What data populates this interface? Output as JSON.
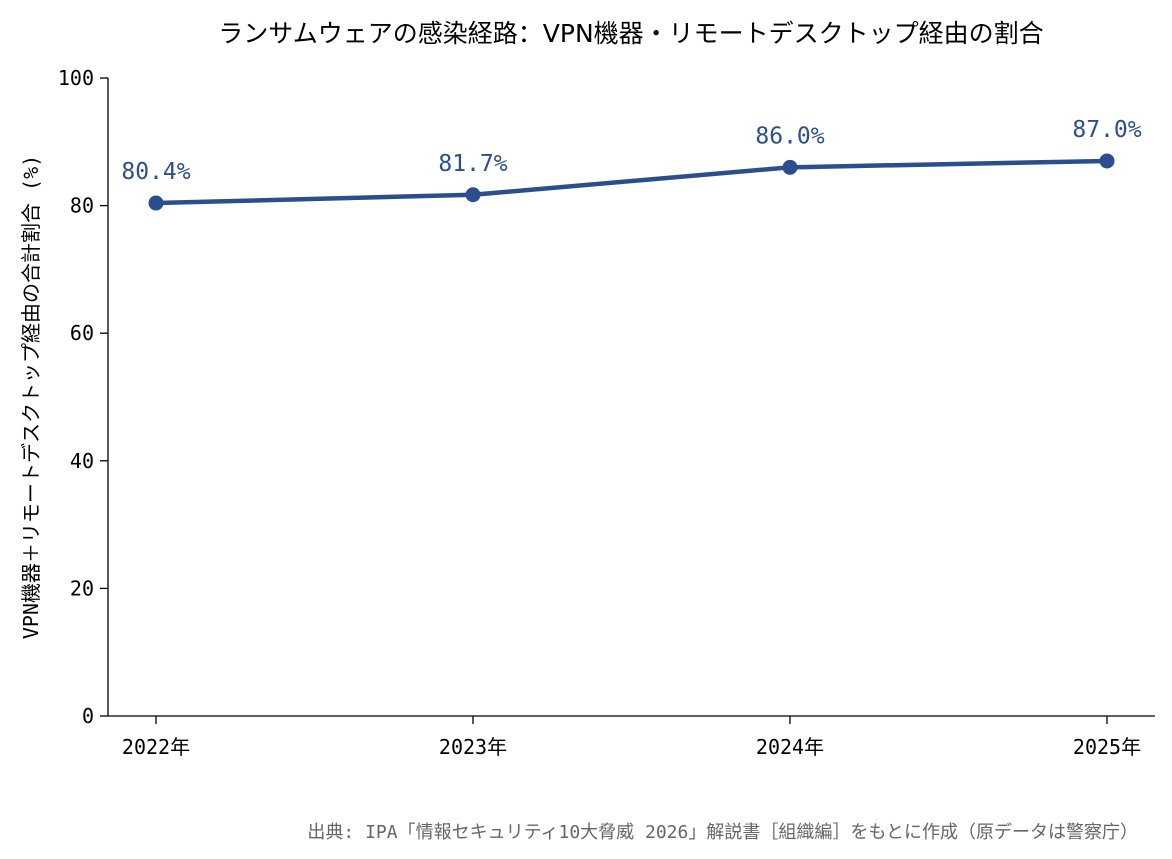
{
  "chart_data": {
    "type": "line",
    "title": "ランサムウェアの感染経路：VPN機器・リモートデスクトップ経由の割合",
    "ylabel": "VPN機器＋リモートデスクトップ経由の合計割合 (%)",
    "xlabel": "",
    "categories": [
      "2022年",
      "2023年",
      "2024年",
      "2025年"
    ],
    "series": [
      {
        "values": [
          80.4,
          81.7,
          86.0,
          87.0
        ],
        "labels": [
          "80.4%",
          "81.7%",
          "86.0%",
          "87.0%"
        ]
      }
    ],
    "ylim": [
      0,
      100
    ],
    "yticks": [
      "0",
      "20",
      "40",
      "60",
      "80",
      "100"
    ],
    "grid": false,
    "line_color": "#2b4f8e"
  },
  "source_note": "出典: IPA「情報セキュリティ10大脅威 2026」解説書［組織編］をもとに作成（原データは警察庁）"
}
